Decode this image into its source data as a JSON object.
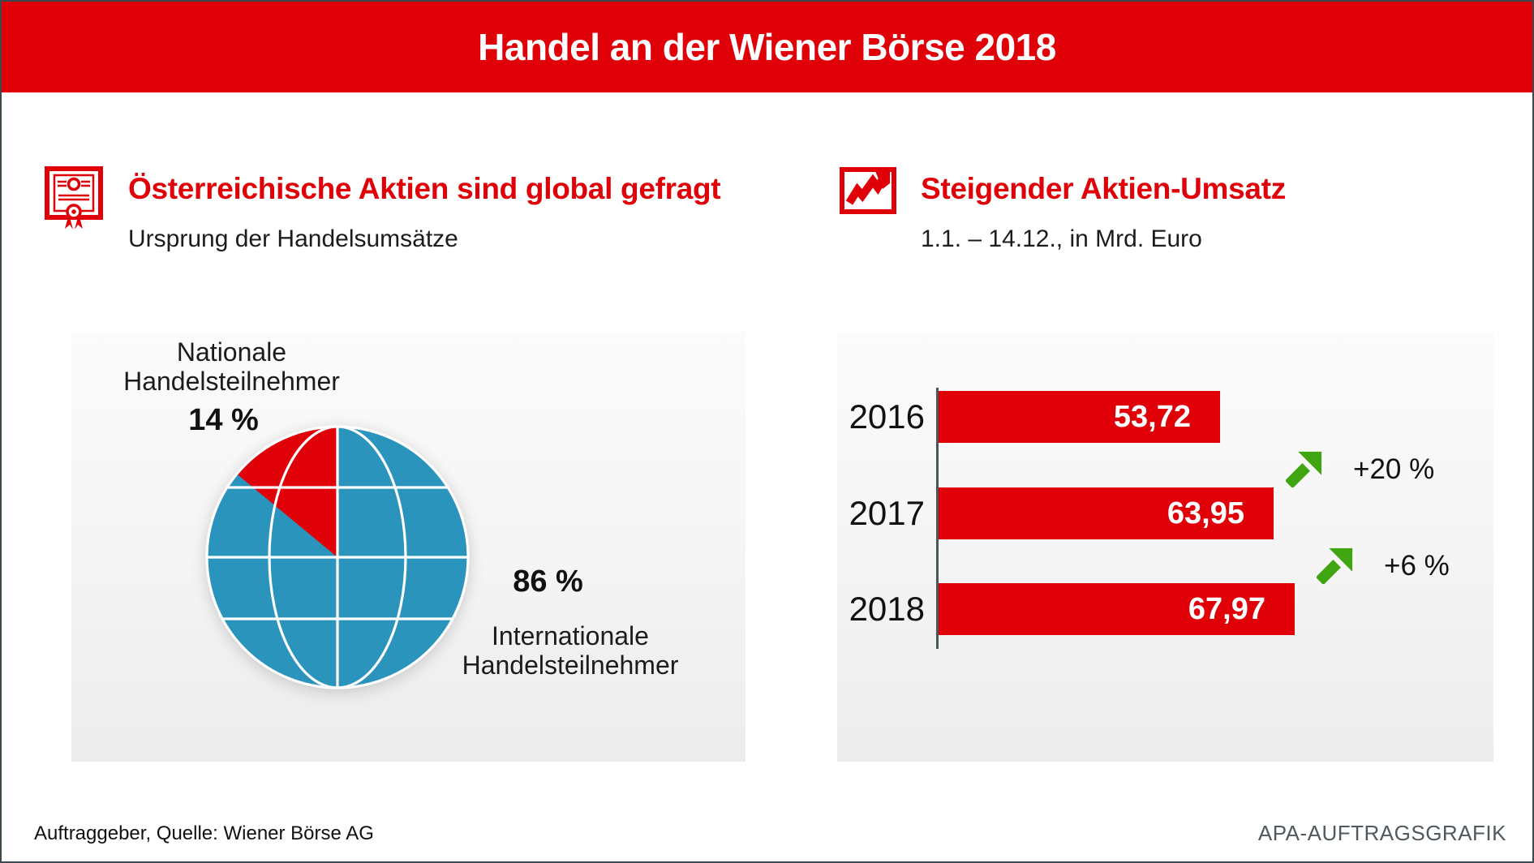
{
  "title": "Handel an der Wiener Börse 2018",
  "colors": {
    "accent_red": "#e00008",
    "globe_blue": "#2a94bd",
    "arrow_green": "#3fa510",
    "axis_gray": "#4a555c"
  },
  "left_section": {
    "icon": "certificate-icon",
    "heading": "Österreichische Aktien sind global gefragt",
    "subheading": "Ursprung der Handelsumsätze",
    "pie_labels": {
      "national_line1": "Nationale",
      "national_line2": "Handelsteilnehmer",
      "national_value": "14 %",
      "international_value": "86 %",
      "international_line1": "Internationale",
      "international_line2": "Handelsteilnehmer"
    }
  },
  "right_section": {
    "icon": "trend-chart-icon",
    "heading": "Steigender Aktien-Umsatz",
    "subheading": "1.1. – 14.12., in Mrd. Euro"
  },
  "footer": {
    "source": "Auftraggeber, Quelle: Wiener Börse AG",
    "credit": "APA-AUFTRAGSGRAFIK"
  },
  "chart_data": [
    {
      "type": "pie",
      "title": "Ursprung der Handelsumsätze",
      "unit": "%",
      "slices": [
        {
          "label": "Nationale Handelsteilnehmer",
          "value": 14,
          "color": "#e00008"
        },
        {
          "label": "Internationale Handelsteilnehmer",
          "value": 86,
          "color": "#2a94bd"
        }
      ],
      "style": "globe with white graticule, 14% wedge starting at 12 o'clock going counter-clockwise"
    },
    {
      "type": "bar",
      "orientation": "horizontal",
      "title": "Steigender Aktien-Umsatz",
      "subtitle": "1.1. – 14.12., in Mrd. Euro",
      "categories": [
        "2016",
        "2017",
        "2018"
      ],
      "values": [
        53.72,
        63.95,
        67.97
      ],
      "value_labels": [
        "53,72",
        "63,95",
        "67,97"
      ],
      "annotations": [
        {
          "between": [
            "2016",
            "2017"
          ],
          "label": "+20 %"
        },
        {
          "between": [
            "2017",
            "2018"
          ],
          "label": "+6 %"
        }
      ],
      "unit": "Mrd. Euro",
      "bar_color": "#e00008",
      "xlim": [
        0,
        67.97
      ]
    }
  ]
}
